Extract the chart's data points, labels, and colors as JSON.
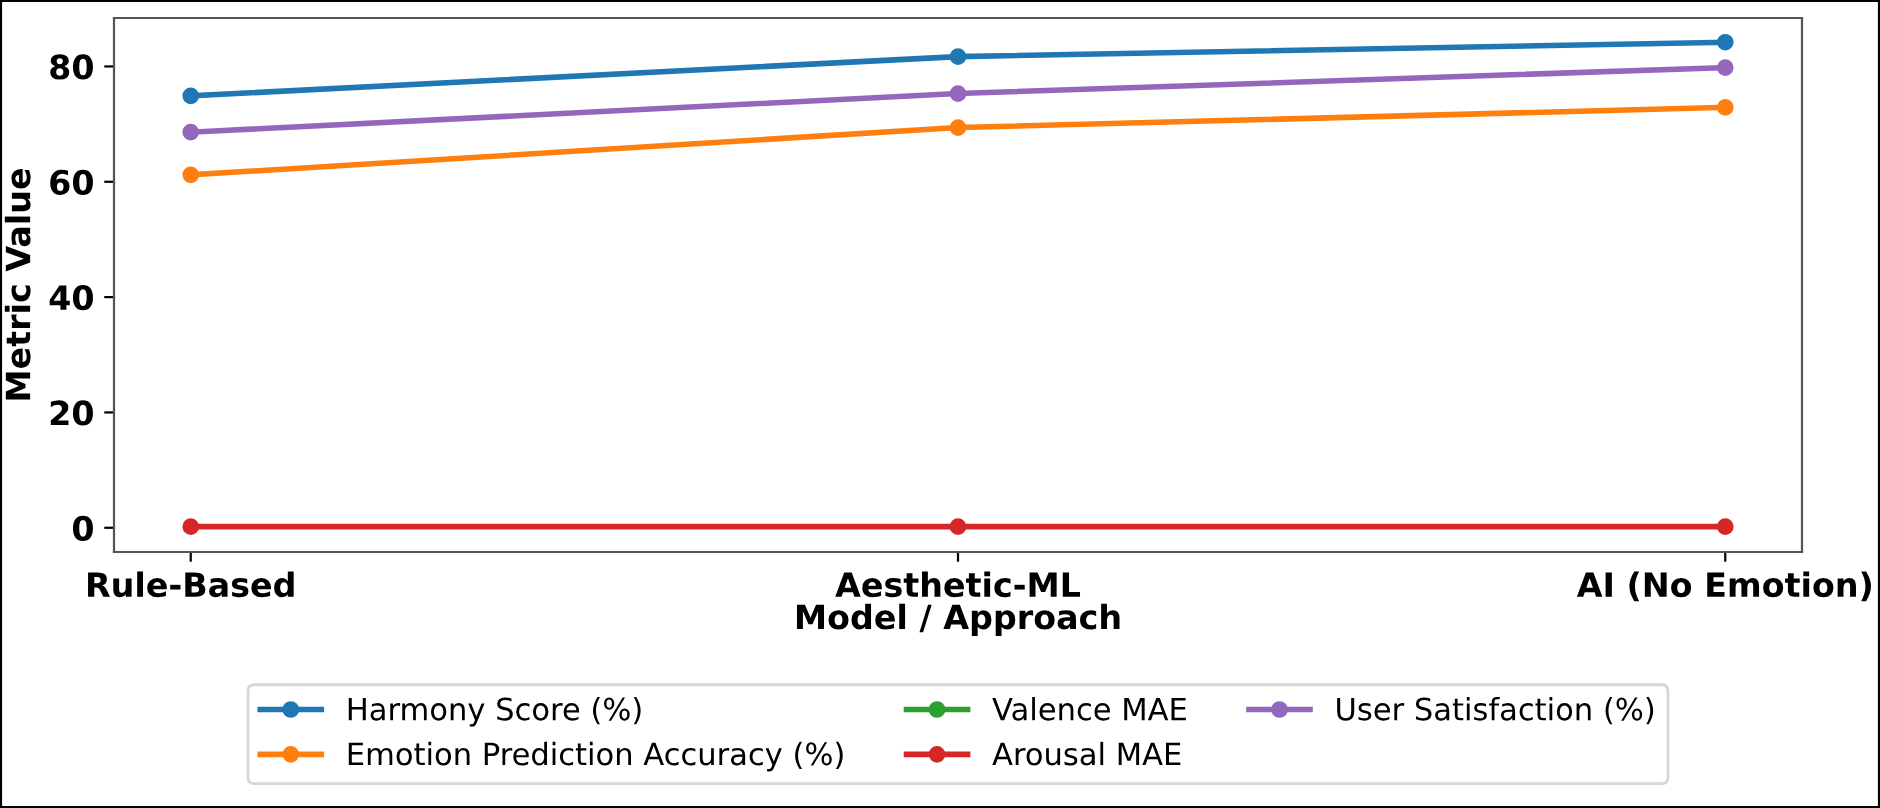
{
  "chart_data": {
    "type": "line",
    "xlabel": "Model / Approach",
    "ylabel": "Metric Value",
    "categories": [
      "Rule-Based",
      "Aesthetic-ML",
      "AI (No Emotion)"
    ],
    "series": [
      {
        "name": "Harmony Score (%)",
        "color": "#1f77b4",
        "values": [
          74.9,
          81.7,
          84.2
        ]
      },
      {
        "name": "Emotion Prediction Accuracy (%)",
        "color": "#ff7f0e",
        "values": [
          61.2,
          69.4,
          72.9
        ]
      },
      {
        "name": "Valence MAE",
        "color": "#2ca02c",
        "values": [
          null,
          null,
          null
        ]
      },
      {
        "name": "Arousal MAE",
        "color": "#d62728",
        "values": [
          0.2,
          0.2,
          0.2
        ]
      },
      {
        "name": "User Satisfaction (%)",
        "color": "#9467bd",
        "values": [
          68.6,
          75.3,
          79.8
        ]
      }
    ],
    "ylim": [
      -4.2,
      88.4
    ],
    "yticks": [
      0,
      20,
      40,
      60,
      80
    ],
    "marker": "circle",
    "line_style": "solid",
    "grid": false,
    "legend": "bottom"
  }
}
